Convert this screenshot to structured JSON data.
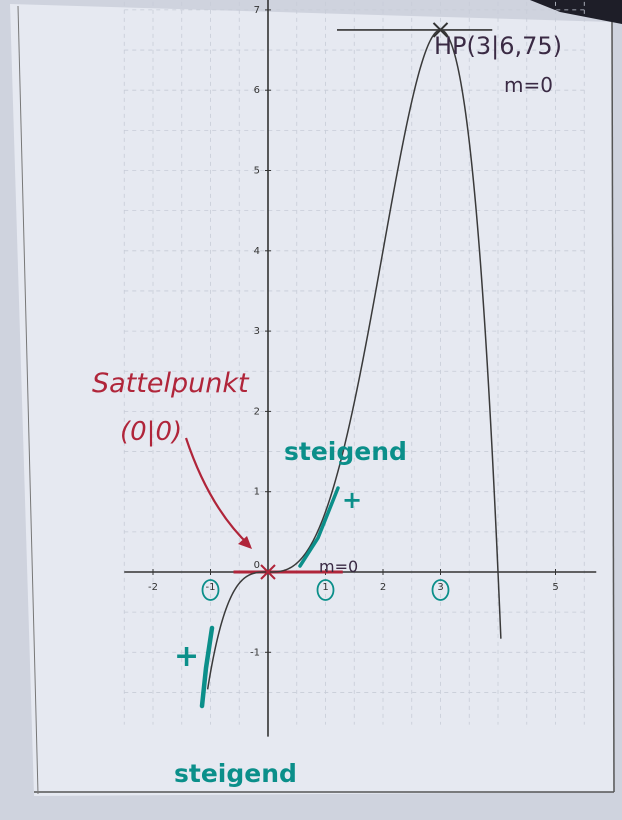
{
  "chart_data": {
    "type": "line",
    "function": "f(x) = -0.25 * x^4 + x^3",
    "x_range": [
      -1.05,
      4.05
    ],
    "xlim": [
      -2.5,
      5.5
    ],
    "ylim": [
      -1.9,
      7.2
    ],
    "x_ticks": [
      -2,
      -1,
      1,
      2,
      3,
      5
    ],
    "x_tick_labels": [
      "-2",
      "-1",
      "1",
      "2",
      "3",
      "5"
    ],
    "circled_x_ticks": [
      -1,
      1,
      3
    ],
    "y_ticks": [
      -1,
      1,
      2,
      3,
      4,
      5,
      6,
      7
    ],
    "y_tick_labels": [
      "-1",
      "1",
      "2",
      "3",
      "4",
      "5",
      "6",
      "7"
    ],
    "origin_label": "0",
    "grid": true,
    "special_points": [
      {
        "x": 0,
        "y": 0,
        "kind": "saddle",
        "labels": [
          "Sattelpunkt",
          "(0|0)"
        ]
      },
      {
        "x": 3,
        "y": 6.75,
        "kind": "maximum",
        "label": "HP(3|6,75)"
      }
    ],
    "tangents": [
      {
        "at_x": 3,
        "y": 6.75,
        "x_from": 1.2,
        "x_to": 3.9,
        "label": "m=0"
      },
      {
        "at_x": 0,
        "y": 0,
        "x_from": -0.6,
        "x_to": 1.3,
        "label": "m=0"
      }
    ],
    "annotations": [
      {
        "text": "steigend",
        "sign": "+"
      },
      {
        "text": "steigend",
        "sign": "+"
      }
    ]
  },
  "colors": {
    "curve": "#3a3a3a",
    "teal_ink": "#0b8f8a",
    "red_ink": "#b0253a",
    "dark_ink": "#3a2a44",
    "grid": "#c7ccd7",
    "paper": "#e6e9f1"
  }
}
